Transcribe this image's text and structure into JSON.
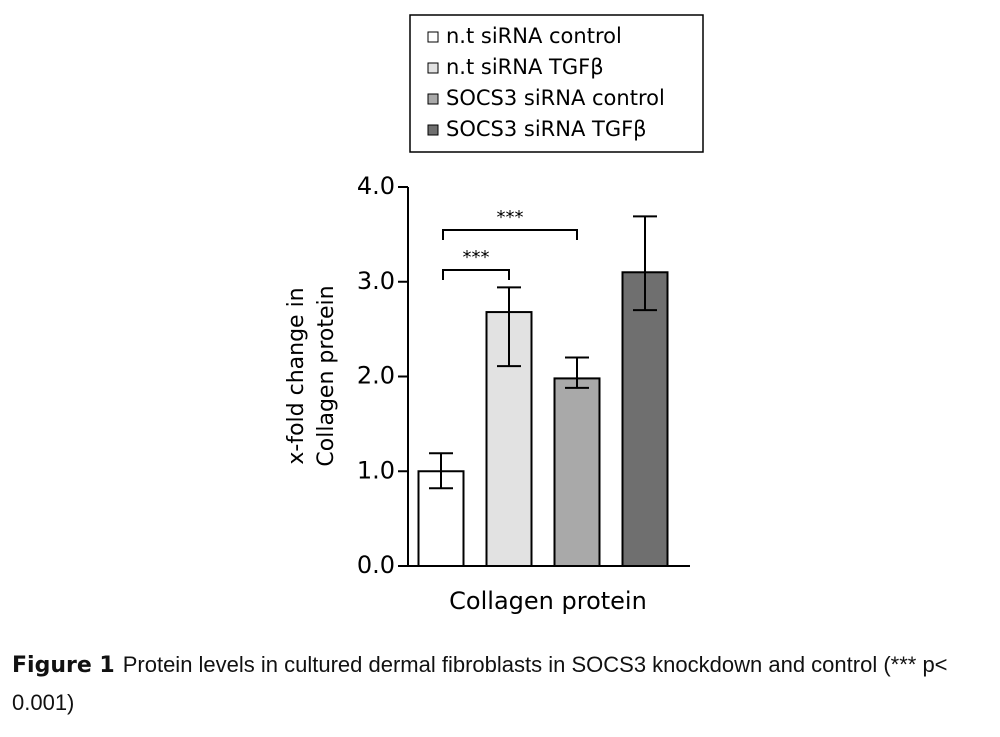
{
  "chart_data": {
    "type": "bar",
    "categories": [
      "Collagen protein"
    ],
    "y_label": [
      "x-fold change in",
      "Collagen protein"
    ],
    "series": [
      {
        "name": "n.t siRNA control",
        "color": "#ffffff",
        "values": [
          1.0
        ],
        "error_lower": [
          0.18
        ],
        "error_upper": [
          0.19
        ]
      },
      {
        "name": "n.t siRNA TGFβ",
        "color": "#e2e2e2",
        "values": [
          2.68
        ],
        "error_lower": [
          0.57
        ],
        "error_upper": [
          0.26
        ]
      },
      {
        "name": "SOCS3 siRNA control",
        "color": "#a9a9a9",
        "values": [
          1.98
        ],
        "error_lower": [
          0.1
        ],
        "error_upper": [
          0.22
        ]
      },
      {
        "name": "SOCS3 siRNA TGFβ",
        "color": "#6f6f6f",
        "values": [
          3.1
        ],
        "error_lower": [
          0.4
        ],
        "error_upper": [
          0.59
        ]
      }
    ],
    "ylim": [
      0,
      4
    ],
    "yticks": [
      {
        "value": 0,
        "label": "0.0"
      },
      {
        "value": 1,
        "label": "1.0"
      },
      {
        "value": 2,
        "label": "2.0"
      },
      {
        "value": 3,
        "label": "3.0"
      },
      {
        "value": 4,
        "label": "4.0"
      }
    ],
    "annotations": [
      {
        "text": "***",
        "between": [
          0,
          2
        ]
      },
      {
        "text": "***",
        "between": [
          0,
          1
        ]
      }
    ],
    "legend": "top"
  },
  "caption": {
    "label": "Figure 1",
    "text": "Protein levels in cultured dermal fibroblasts in SOCS3 knockdown and control (*** p< 0.001)"
  }
}
